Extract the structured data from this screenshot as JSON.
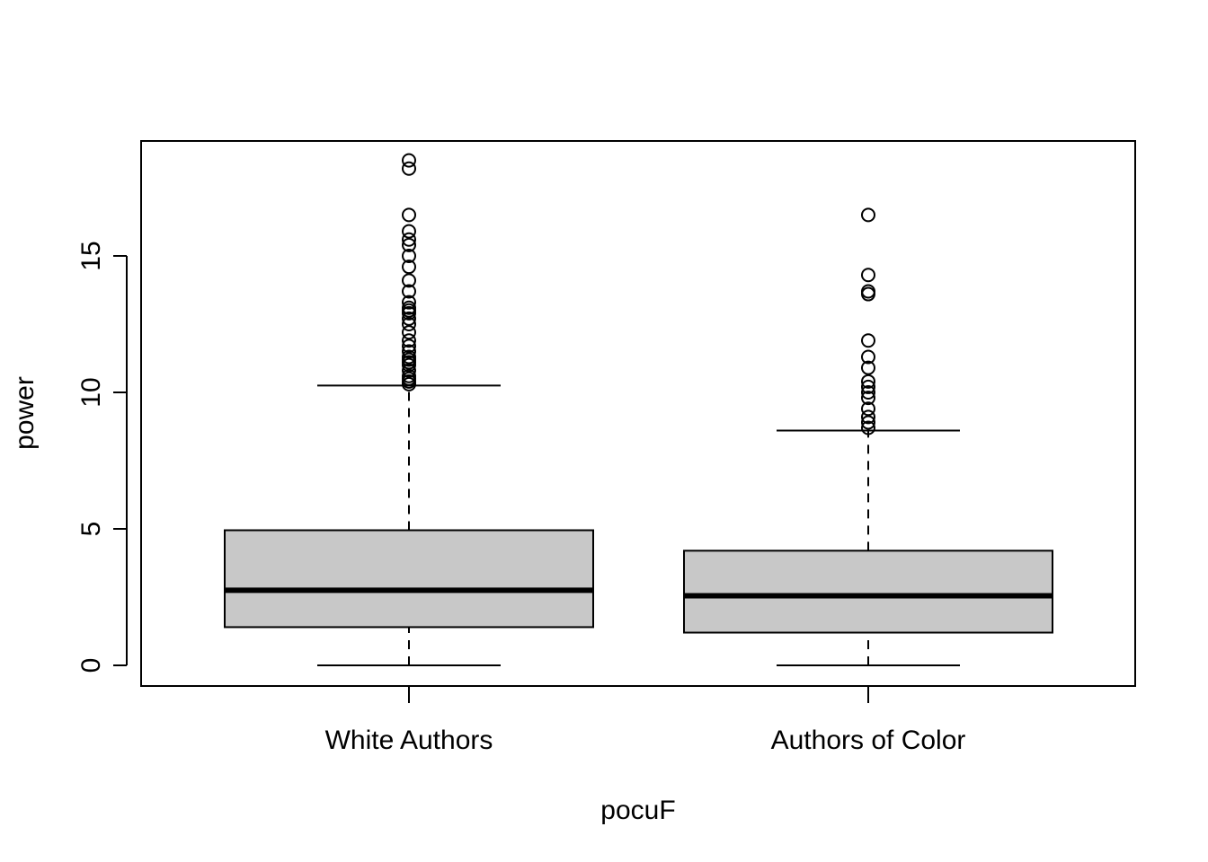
{
  "chart_data": {
    "type": "boxplot",
    "title": "",
    "xlabel": "pocuF",
    "ylabel": "power",
    "ylim": [
      -0.7,
      19.2
    ],
    "yticks": [
      0,
      5,
      10,
      15
    ],
    "grid": false,
    "legend": "none",
    "colors": {
      "box_fill": "#c8c8c8",
      "stroke": "#000000",
      "background": "#ffffff"
    },
    "categories": [
      "White Authors",
      "Authors of Color"
    ],
    "boxes": [
      {
        "category": "White Authors",
        "whisker_low": 0,
        "q1": 1.4,
        "median": 2.75,
        "q3": 4.95,
        "whisker_high": 10.25,
        "outliers": [
          10.3,
          10.4,
          10.5,
          10.6,
          10.8,
          11.0,
          11.1,
          11.2,
          11.3,
          11.5,
          11.7,
          11.9,
          12.2,
          12.5,
          12.7,
          12.9,
          13.0,
          13.1,
          13.3,
          13.7,
          14.1,
          14.6,
          15.0,
          15.4,
          15.6,
          15.9,
          16.5,
          18.2,
          18.5
        ]
      },
      {
        "category": "Authors of Color",
        "whisker_low": 0,
        "q1": 1.2,
        "median": 2.55,
        "q3": 4.2,
        "whisker_high": 8.6,
        "outliers": [
          8.7,
          8.9,
          9.1,
          9.4,
          9.8,
          10.0,
          10.2,
          10.4,
          10.9,
          11.3,
          11.9,
          13.6,
          13.7,
          14.3,
          16.5
        ]
      }
    ]
  }
}
